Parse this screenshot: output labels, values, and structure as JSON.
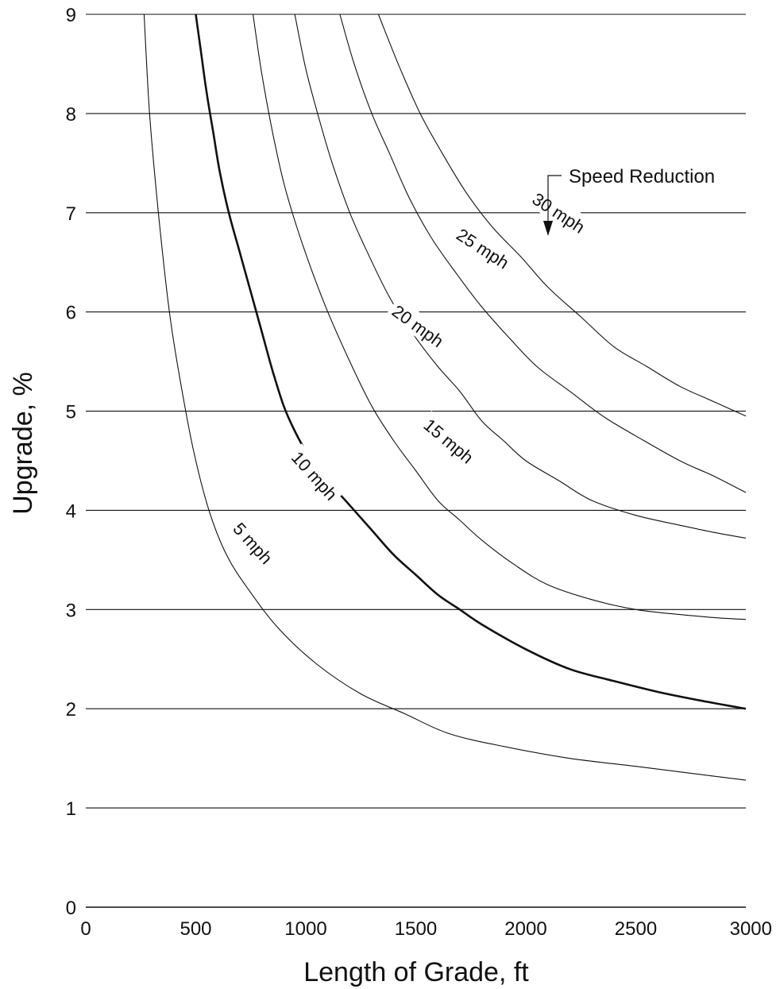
{
  "chart_data": {
    "type": "line",
    "title": "",
    "xlabel": "Length of Grade, ft",
    "ylabel": "Upgrade, %",
    "xlim": [
      0,
      3000
    ],
    "ylim": [
      0,
      9
    ],
    "x_ticks": [
      "0",
      "500",
      "1000",
      "1500",
      "2000",
      "2500",
      "3000"
    ],
    "y_ticks": [
      "0",
      "1",
      "2",
      "3",
      "4",
      "5",
      "6",
      "7",
      "8",
      "9"
    ],
    "grid": "horizontal",
    "annotation": "Speed Reduction",
    "series": [
      {
        "name": "5 mph",
        "x": [
          265,
          290,
          330,
          380,
          430,
          490,
          560,
          640,
          740,
          880,
          1050,
          1250,
          1450,
          1650,
          1900,
          2200,
          2500,
          2750,
          3000
        ],
        "y": [
          9.0,
          8.0,
          7.0,
          6.0,
          5.3,
          4.6,
          4.0,
          3.55,
          3.2,
          2.8,
          2.45,
          2.15,
          1.95,
          1.75,
          1.62,
          1.5,
          1.42,
          1.35,
          1.28
        ]
      },
      {
        "name": "10 mph",
        "x": [
          500,
          525,
          550,
          580,
          610,
          650,
          700,
          750,
          800,
          850,
          900,
          950,
          1000,
          1100,
          1200,
          1300,
          1400,
          1500,
          1600,
          1700,
          1800,
          2000,
          2200,
          2400,
          2600,
          2800,
          3000
        ],
        "y": [
          9.0,
          8.6,
          8.2,
          7.8,
          7.4,
          7.0,
          6.6,
          6.2,
          5.8,
          5.4,
          5.05,
          4.8,
          4.6,
          4.3,
          4.05,
          3.8,
          3.55,
          3.35,
          3.15,
          3.0,
          2.85,
          2.6,
          2.4,
          2.28,
          2.17,
          2.08,
          2.0
        ]
      },
      {
        "name": "15 mph",
        "x": [
          760,
          800,
          850,
          900,
          960,
          1030,
          1100,
          1200,
          1300,
          1400,
          1500,
          1600,
          1700,
          1800,
          1950,
          2100,
          2300,
          2500,
          2700,
          2850,
          3000
        ],
        "y": [
          9.0,
          8.4,
          7.8,
          7.3,
          6.85,
          6.4,
          6.0,
          5.5,
          5.05,
          4.7,
          4.4,
          4.1,
          3.9,
          3.7,
          3.45,
          3.25,
          3.1,
          3.0,
          2.95,
          2.92,
          2.9
        ]
      },
      {
        "name": "20 mph",
        "x": [
          950,
          1000,
          1060,
          1120,
          1200,
          1280,
          1380,
          1480,
          1600,
          1700,
          1800,
          1900,
          2000,
          2150,
          2300,
          2500,
          2700,
          2850,
          3000
        ],
        "y": [
          9.0,
          8.45,
          7.95,
          7.5,
          7.0,
          6.6,
          6.15,
          5.8,
          5.45,
          5.2,
          4.9,
          4.7,
          4.5,
          4.3,
          4.1,
          3.95,
          3.85,
          3.78,
          3.72
        ]
      },
      {
        "name": "25 mph",
        "x": [
          1155,
          1220,
          1300,
          1380,
          1470,
          1570,
          1680,
          1800,
          1920,
          2050,
          2200,
          2350,
          2500,
          2700,
          2850,
          3000
        ],
        "y": [
          9.0,
          8.5,
          8.0,
          7.6,
          7.15,
          6.75,
          6.4,
          6.05,
          5.75,
          5.45,
          5.2,
          4.95,
          4.75,
          4.5,
          4.35,
          4.18
        ]
      },
      {
        "name": "30 mph",
        "x": [
          1330,
          1420,
          1520,
          1620,
          1730,
          1850,
          1980,
          2100,
          2250,
          2400,
          2550,
          2700,
          2850,
          3000
        ],
        "y": [
          9.0,
          8.5,
          8.0,
          7.6,
          7.2,
          6.85,
          6.55,
          6.25,
          5.95,
          5.65,
          5.45,
          5.25,
          5.1,
          4.95
        ]
      }
    ],
    "curve_labels": [
      {
        "text": "5 mph",
        "x": 760,
        "y": 3.67,
        "angle": 48
      },
      {
        "text": "10 mph",
        "x": 1040,
        "y": 4.35,
        "angle": 48
      },
      {
        "text": "15 mph",
        "x": 1650,
        "y": 4.7,
        "angle": 40
      },
      {
        "text": "20 mph",
        "x": 1510,
        "y": 5.86,
        "angle": 36
      },
      {
        "text": "25 mph",
        "x": 1805,
        "y": 6.64,
        "angle": 33
      },
      {
        "text": "30 mph",
        "x": 2150,
        "y": 7.0,
        "angle": 33
      }
    ],
    "thick_series": "10 mph"
  }
}
